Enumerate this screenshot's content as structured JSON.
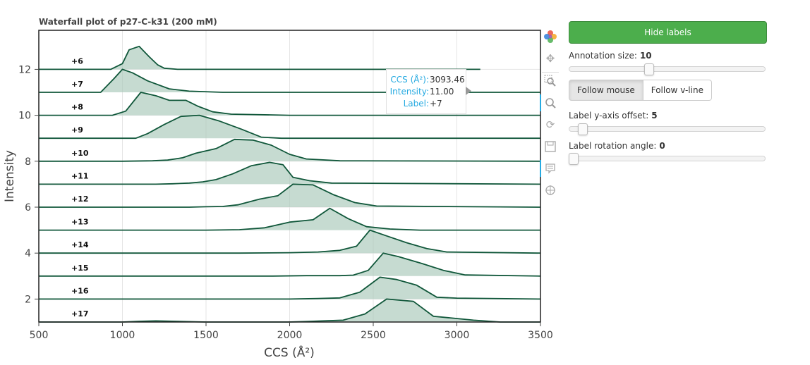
{
  "chart_data": {
    "type": "area",
    "title": "Waterfall plot of p27-C-k31 (200 mM)",
    "xlabel": "CCS (Å²)",
    "ylabel": "Intensity",
    "xlim": [
      500,
      3500
    ],
    "ylim": [
      1,
      13.7
    ],
    "xticks": [
      500,
      1000,
      1500,
      2000,
      2500,
      3000,
      3500
    ],
    "yticks": [
      2,
      4,
      6,
      8,
      10,
      12
    ],
    "grid": true,
    "series": [
      {
        "name": "+6",
        "baseline": 12,
        "x": [
          500,
          930,
          1000,
          1040,
          1100,
          1160,
          1210,
          1250,
          1330,
          3140
        ],
        "y": [
          12,
          12,
          12.25,
          12.85,
          13.0,
          12.55,
          12.2,
          12.05,
          12.0,
          12.0
        ]
      },
      {
        "name": "+7",
        "baseline": 11,
        "x": [
          500,
          780,
          870,
          950,
          1000,
          1060,
          1150,
          1280,
          1400,
          1600,
          2200,
          3500
        ],
        "y": [
          11,
          11,
          11.0,
          11.6,
          12.0,
          11.85,
          11.5,
          11.15,
          11.05,
          11.0,
          11.0,
          11.0
        ]
      },
      {
        "name": "+8",
        "baseline": 10,
        "x": [
          500,
          940,
          1020,
          1110,
          1200,
          1280,
          1380,
          1450,
          1540,
          1650,
          2000,
          3500
        ],
        "y": [
          10,
          10,
          10.18,
          11.0,
          10.85,
          10.65,
          10.65,
          10.4,
          10.15,
          10.05,
          10.0,
          10.0
        ]
      },
      {
        "name": "+9",
        "baseline": 9,
        "x": [
          500,
          1080,
          1150,
          1250,
          1350,
          1460,
          1580,
          1710,
          1830,
          1950,
          2200,
          3500
        ],
        "y": [
          9,
          9,
          9.2,
          9.6,
          9.95,
          10.0,
          9.75,
          9.4,
          9.05,
          9.0,
          9.0,
          9.0
        ]
      },
      {
        "name": "+10",
        "baseline": 8,
        "x": [
          500,
          1000,
          1180,
          1270,
          1360,
          1440,
          1560,
          1670,
          1780,
          1890,
          2000,
          2100,
          2300,
          3500
        ],
        "y": [
          8,
          8,
          8.02,
          8.05,
          8.15,
          8.35,
          8.55,
          8.95,
          8.92,
          8.7,
          8.3,
          8.1,
          8.02,
          8.0
        ]
      },
      {
        "name": "+11",
        "baseline": 7,
        "x": [
          500,
          1200,
          1300,
          1400,
          1480,
          1560,
          1660,
          1770,
          1880,
          1960,
          2020,
          2120,
          2250,
          3500
        ],
        "y": [
          7,
          7,
          7.02,
          7.05,
          7.1,
          7.2,
          7.45,
          7.8,
          7.95,
          7.85,
          7.3,
          7.15,
          7.05,
          7.0
        ]
      },
      {
        "name": "+12",
        "baseline": 6,
        "x": [
          500,
          1400,
          1500,
          1600,
          1690,
          1820,
          1930,
          2020,
          2140,
          2260,
          2390,
          2520,
          3500
        ],
        "y": [
          6,
          6,
          6.02,
          6.03,
          6.1,
          6.35,
          6.5,
          7.0,
          6.97,
          6.55,
          6.2,
          6.05,
          6.0
        ]
      },
      {
        "name": "+13",
        "baseline": 5,
        "x": [
          500,
          1500,
          1700,
          1850,
          2000,
          2140,
          2240,
          2350,
          2460,
          2600,
          2780,
          3500
        ],
        "y": [
          5,
          5,
          5.02,
          5.1,
          5.35,
          5.45,
          5.95,
          5.5,
          5.15,
          5.05,
          5.0,
          5.0
        ]
      },
      {
        "name": "+14",
        "baseline": 4,
        "x": [
          500,
          1700,
          2000,
          2170,
          2300,
          2400,
          2480,
          2580,
          2700,
          2820,
          2940,
          3500
        ],
        "y": [
          4,
          4,
          4.02,
          4.05,
          4.12,
          4.3,
          5.0,
          4.75,
          4.45,
          4.2,
          4.05,
          4.0
        ]
      },
      {
        "name": "+15",
        "baseline": 3,
        "x": [
          500,
          1900,
          2100,
          2300,
          2380,
          2470,
          2560,
          2650,
          2790,
          2920,
          3050,
          3500
        ],
        "y": [
          3,
          3,
          3.02,
          3.02,
          3.04,
          3.25,
          4.0,
          3.85,
          3.55,
          3.25,
          3.05,
          3.0
        ]
      },
      {
        "name": "+16",
        "baseline": 2,
        "x": [
          500,
          2000,
          2170,
          2300,
          2420,
          2540,
          2640,
          2760,
          2880,
          3000,
          3500
        ],
        "y": [
          2,
          2,
          2.02,
          2.05,
          2.3,
          2.95,
          2.85,
          2.6,
          2.08,
          2.04,
          2.0
        ]
      },
      {
        "name": "+17",
        "baseline": 1,
        "x": [
          500,
          1000,
          1100,
          1200,
          1320,
          1500,
          1990,
          2100,
          2200,
          2320,
          2450,
          2580,
          2740,
          2860,
          2960,
          3100,
          3260,
          3500
        ],
        "y": [
          1,
          1,
          1.03,
          1.05,
          1.03,
          1.0,
          1.0,
          1.02,
          1.05,
          1.08,
          1.35,
          2.0,
          1.9,
          1.25,
          1.18,
          1.08,
          1.0,
          1.0
        ]
      }
    ],
    "line_color": "#10573a",
    "fill_color": "#a7c8b8"
  },
  "tooltip": {
    "rows": [
      {
        "key": "CCS (Å²):",
        "value": "3093.46"
      },
      {
        "key": "Intensity:",
        "value": "11.00"
      },
      {
        "key": "Label:",
        "value": "+7"
      }
    ]
  },
  "toolbar": {
    "tools": [
      {
        "icon": "bokeh-logo-icon"
      },
      {
        "icon": "pan-icon"
      },
      {
        "icon": "box-zoom-icon"
      },
      {
        "icon": "wheel-zoom-icon"
      },
      {
        "icon": "reset-icon"
      },
      {
        "icon": "save-icon"
      },
      {
        "icon": "hover-icon"
      },
      {
        "icon": "crosshair-icon"
      }
    ]
  },
  "controls": {
    "hide_labels": "Hide labels",
    "annotation_size": {
      "label": "Annotation size:",
      "value": "10",
      "fraction": 0.4
    },
    "follow_mouse": "Follow mouse",
    "follow_vline": "Follow v-line",
    "label_offset": {
      "label": "Label y-axis offset:",
      "value": "5",
      "fraction": 0.05
    },
    "label_rotation": {
      "label": "Label rotation angle:",
      "value": "0",
      "fraction": 0.0
    }
  }
}
